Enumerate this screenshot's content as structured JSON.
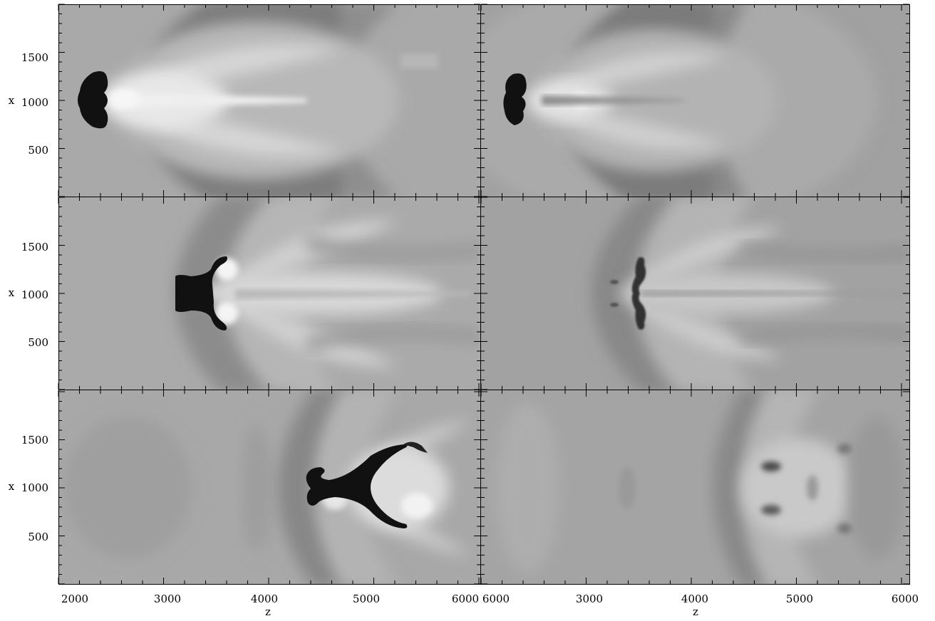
{
  "figure": {
    "x_axis_label": "z",
    "y_axis_label": "x",
    "x_ticks": [
      [
        "2000",
        "3000",
        "4000",
        "5000",
        "6000"
      ],
      [
        "6000",
        "3000",
        "4000",
        "5000",
        "6000"
      ]
    ],
    "y_ticks": [
      "500",
      "1000",
      "1500"
    ]
  },
  "colors": {
    "background": "#a8a8a8",
    "cloud_core": "#111111",
    "bright_region": "#f2f2f2",
    "dark_shock": "#7e7e7e",
    "frame": "#000000"
  },
  "panels": [
    {
      "id": "top-left"
    },
    {
      "id": "top-right"
    },
    {
      "id": "middle-left"
    },
    {
      "id": "middle-right"
    },
    {
      "id": "bottom-left"
    },
    {
      "id": "bottom-right"
    }
  ]
}
